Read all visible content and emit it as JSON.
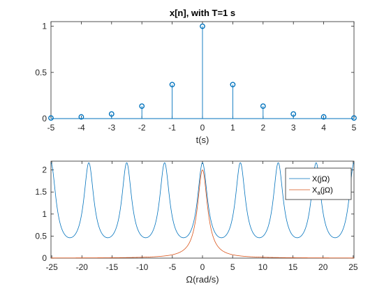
{
  "figure": {
    "background": "#ffffff",
    "axes_color": "#262626"
  },
  "chart_data": [
    {
      "type": "stem",
      "title": "x[n], with T=1 s",
      "xlabel": "t(s)",
      "ylabel": "",
      "xlim": [
        -5,
        5
      ],
      "ylim": [
        0,
        1.05
      ],
      "xticks": [
        -5,
        -4,
        -3,
        -2,
        -1,
        0,
        1,
        2,
        3,
        4,
        5
      ],
      "yticks": [
        0,
        0.5,
        1
      ],
      "yticklabels": [
        "0",
        "0.5",
        "1"
      ],
      "grid": false,
      "color": "#0072BD",
      "series": [
        {
          "x": [
            -5,
            -4,
            -3,
            -2,
            -1,
            0,
            1,
            2,
            3,
            4,
            5
          ],
          "values": [
            0.0067,
            0.0183,
            0.0498,
            0.1353,
            0.3679,
            1.0,
            0.3679,
            0.1353,
            0.0498,
            0.0183,
            0.0067
          ]
        }
      ]
    },
    {
      "type": "line",
      "title": "",
      "xlabel": "Ω(rad/s)",
      "ylabel": "",
      "xlim": [
        -25.13,
        25.13
      ],
      "ylim": [
        0,
        2.2
      ],
      "xticks": [
        -25,
        -20,
        -15,
        -10,
        -5,
        0,
        5,
        10,
        15,
        20,
        25
      ],
      "yticks": [
        0,
        0.5,
        1,
        1.5,
        2
      ],
      "yticklabels": [
        "0",
        "0.5",
        "1",
        "1.5",
        "2"
      ],
      "grid": false,
      "legend": {
        "placement": "top-right",
        "entries": [
          {
            "base": "X(jΩ)",
            "sub": ""
          },
          {
            "base": "X",
            "sub": "a",
            "suffix": "(jΩ)"
          }
        ]
      },
      "series": [
        {
          "name": "X(jΩ)",
          "color": "#0072BD",
          "formula": "sinh(1)/(cosh(1)-cos(Ω))",
          "peak": 2.164,
          "trough": 0.462,
          "period": 6.2832
        },
        {
          "name": "Xa(jΩ)",
          "color": "#D95319",
          "formula": "2/(1+Ω^2)",
          "peak": 2.0
        }
      ]
    }
  ]
}
